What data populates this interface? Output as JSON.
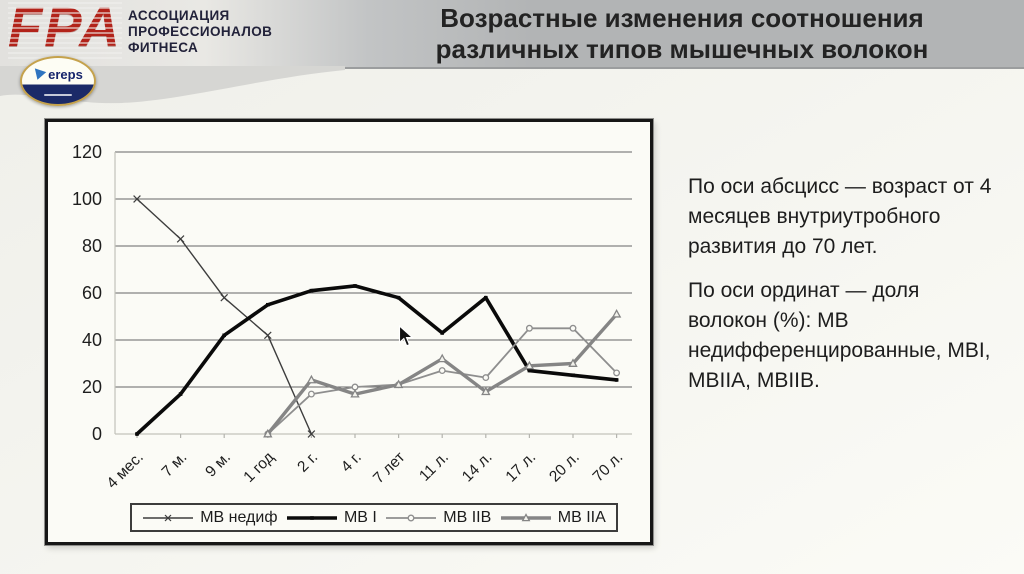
{
  "header": {
    "logo_text": "FPA",
    "org_name_lines": [
      "АССОЦИАЦИЯ",
      "ПРОФЕССИОНАЛОВ",
      "ФИТНЕСА"
    ],
    "badge_text": "ereps",
    "title_line1": "Возрастные изменения соотношения",
    "title_line2": "различных типов мышечных волокон"
  },
  "description": {
    "paragraph1": "По оси абсцисс — возраст от 4 месяцев внутриутробного развития до 70 лет.",
    "paragraph2": "По оси ординат — доля волокон (%): МВ недифференцированные, МВI, МВIIА, МВIIВ."
  },
  "chart_data": {
    "type": "line",
    "title": "",
    "xlabel": "",
    "ylabel": "",
    "categories": [
      "4 мес.",
      "7 м.",
      "9 м.",
      "1 год",
      "2 г.",
      "4 г.",
      "7 лет",
      "11 л.",
      "14 л.",
      "17 л.",
      "20 л.",
      "70 л."
    ],
    "series": [
      {
        "name": "МВ недиф",
        "marker": "x",
        "color": "#3d3d3d",
        "line_width": 1.4,
        "values": [
          100,
          83,
          58,
          42,
          0,
          null,
          null,
          null,
          null,
          null,
          null,
          null
        ]
      },
      {
        "name": "МВ I",
        "marker": "tick",
        "color": "#0a0a0a",
        "line_width": 3.6,
        "values": [
          0,
          17,
          42,
          55,
          61,
          63,
          58,
          43,
          58,
          27,
          25,
          23
        ]
      },
      {
        "name": "МВ IIВ",
        "marker": "circle",
        "color": "#8e8e8e",
        "line_width": 1.8,
        "values": [
          null,
          null,
          null,
          0,
          17,
          20,
          21,
          27,
          24,
          45,
          45,
          26
        ]
      },
      {
        "name": "МВ IIА",
        "marker": "triangle",
        "color": "#858585",
        "line_width": 3.4,
        "values": [
          null,
          null,
          null,
          0,
          23,
          17,
          21,
          32,
          18,
          29,
          30,
          51
        ]
      }
    ],
    "ylim": [
      0,
      120
    ],
    "yticks": [
      0,
      20,
      40,
      60,
      80,
      100,
      120
    ],
    "grid": true,
    "legend_position": "bottom"
  },
  "colors": {
    "brand_red": "#b2231a",
    "header_gray": "#b2b4b5",
    "badge_navy": "#1b2a68",
    "badge_gold": "#c5a24c",
    "panel_bg": "#fbfbf6",
    "grid_dark": "#666666",
    "axis_light": "#c2c2bb"
  }
}
